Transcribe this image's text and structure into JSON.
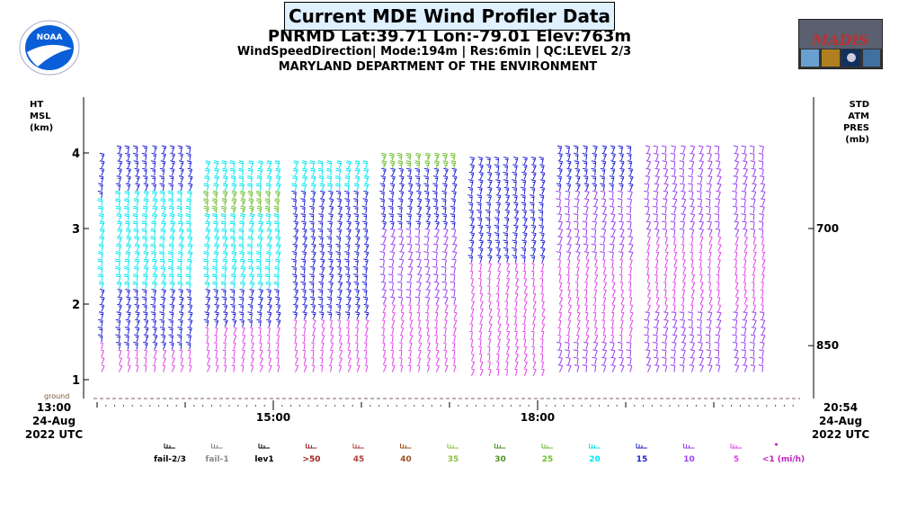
{
  "header": {
    "title": "Current MDE Wind Profiler Data",
    "station": "PNRMD  Lat:39.71 Lon:-79.01 Elev:763m",
    "mode_line": "WindSpeedDirection| Mode:194m | Res:6min |  QC:LEVEL 2/3",
    "agency": "MARYLAND DEPARTMENT OF THE ENVIRONMENT",
    "left_logo_text": "NOAA",
    "right_logo_text": "MADIS"
  },
  "chart_data": {
    "type": "wind-barb-time-height",
    "left_axis_label": [
      "HT",
      "MSL",
      "(km)"
    ],
    "right_axis_label": [
      "STD",
      "ATM",
      "PRES",
      "(mb)"
    ],
    "y_ticks": [
      {
        "value": 4,
        "label": "4"
      },
      {
        "value": 3,
        "label": "3"
      },
      {
        "value": 2,
        "label": "2"
      },
      {
        "value": 1,
        "label": "1"
      }
    ],
    "pressure_ticks": [
      {
        "height_km": 3.0,
        "label": "700"
      },
      {
        "height_km": 1.45,
        "label": "850"
      }
    ],
    "ground_label": "ground",
    "ylim": [
      0.75,
      4.4
    ],
    "x_start": {
      "time": "13:00",
      "date": "24-Aug",
      "year": "2022 UTC"
    },
    "x_end": {
      "time": "20:54",
      "date": "24-Aug",
      "year": "2022 UTC"
    },
    "x_ticks": [
      {
        "hour": 15,
        "label": "15:00"
      },
      {
        "hour": 18,
        "label": "18:00"
      }
    ],
    "xlim_hours": [
      13.0,
      20.9
    ],
    "level_spacing_km": 0.1,
    "speed_colors": {
      "5": "#e040e8",
      "10": "#9a40f0",
      "15": "#2020d8",
      "20": "#00e8f0",
      "25": "#70c030"
    },
    "blocks": [
      {
        "start": 13.0,
        "count": 1,
        "bottom": 1.1,
        "top": 3.9,
        "bands": [
          [
            3.4,
            3.9,
            15
          ],
          [
            2.2,
            3.4,
            20
          ],
          [
            1.5,
            2.2,
            15
          ],
          [
            1.1,
            1.5,
            5
          ]
        ]
      },
      {
        "start": 13.2,
        "count": 9,
        "bottom": 1.1,
        "top": 4.0,
        "bands": [
          [
            3.5,
            4.0,
            15
          ],
          [
            2.2,
            3.5,
            20
          ],
          [
            1.4,
            2.2,
            15
          ],
          [
            1.1,
            1.4,
            5
          ]
        ]
      },
      {
        "start": 14.2,
        "count": 9,
        "bottom": 1.1,
        "top": 3.85,
        "bands": [
          [
            3.5,
            3.9,
            20
          ],
          [
            3.2,
            3.5,
            25
          ],
          [
            2.2,
            3.2,
            20
          ],
          [
            1.7,
            2.2,
            15
          ],
          [
            1.1,
            1.7,
            5
          ]
        ]
      },
      {
        "start": 15.2,
        "count": 9,
        "bottom": 1.1,
        "top": 3.85,
        "bands": [
          [
            3.5,
            3.9,
            20
          ],
          [
            1.8,
            3.5,
            15
          ],
          [
            1.1,
            1.8,
            5
          ]
        ]
      },
      {
        "start": 16.2,
        "count": 9,
        "bottom": 1.1,
        "top": 3.95,
        "bands": [
          [
            3.8,
            4.0,
            25
          ],
          [
            3.0,
            3.8,
            15
          ],
          [
            2.0,
            3.0,
            10
          ],
          [
            1.1,
            2.0,
            5
          ]
        ]
      },
      {
        "start": 17.2,
        "count": 9,
        "bottom": 1.05,
        "top": 3.9,
        "bands": [
          [
            2.5,
            3.9,
            15
          ],
          [
            1.05,
            2.5,
            5
          ]
        ]
      },
      {
        "start": 18.2,
        "count": 9,
        "bottom": 1.1,
        "top": 4.05,
        "bands": [
          [
            3.5,
            4.05,
            15
          ],
          [
            2.6,
            3.5,
            10
          ],
          [
            1.5,
            2.6,
            5
          ],
          [
            1.1,
            1.5,
            10
          ]
        ]
      },
      {
        "start": 19.2,
        "count": 9,
        "bottom": 1.1,
        "top": 4.05,
        "bands": [
          [
            2.9,
            4.05,
            10
          ],
          [
            1.9,
            2.9,
            5
          ],
          [
            1.1,
            1.9,
            10
          ]
        ]
      },
      {
        "start": 20.2,
        "count": 4,
        "bottom": 1.1,
        "top": 4.0,
        "bands": [
          [
            2.9,
            4.0,
            10
          ],
          [
            1.9,
            2.9,
            5
          ],
          [
            1.1,
            1.9,
            10
          ]
        ]
      }
    ],
    "legend": [
      {
        "label": "fail-2/3",
        "color": "#000000"
      },
      {
        "label": "fail-1",
        "color": "#888888"
      },
      {
        "label": "lev1",
        "color": "#000000"
      },
      {
        "label": ">50",
        "color": "#a02020"
      },
      {
        "label": "45",
        "color": "#b04040"
      },
      {
        "label": "40",
        "color": "#a05020"
      },
      {
        "label": "35",
        "color": "#90c040"
      },
      {
        "label": "30",
        "color": "#509020"
      },
      {
        "label": "25",
        "color": "#70c030"
      },
      {
        "label": "20",
        "color": "#00e8f0"
      },
      {
        "label": "15",
        "color": "#2020d8"
      },
      {
        "label": "10",
        "color": "#9a40f0"
      },
      {
        "label": "5",
        "color": "#e040e8"
      },
      {
        "label": "<1  (mi/h)",
        "color": "#c020c0"
      }
    ]
  }
}
